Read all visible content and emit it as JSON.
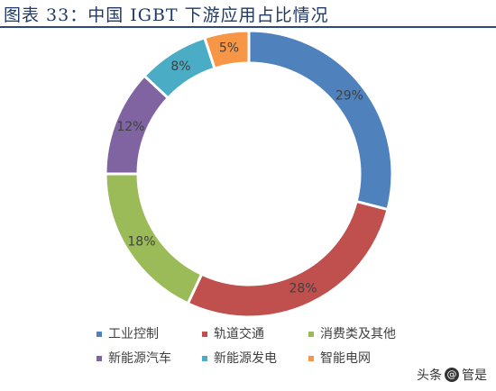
{
  "title": "图表 33：中国 IGBT 下游应用占比情况",
  "watermark": {
    "prefix": "头条",
    "at": "@",
    "name": "管是"
  },
  "chart_data": {
    "type": "pie",
    "donut": true,
    "title": "图表 33：中国 IGBT 下游应用占比情况",
    "slices": [
      {
        "name": "工业控制",
        "value": 29,
        "label": "29%",
        "color": "#4f81bd"
      },
      {
        "name": "轨道交通",
        "value": 28,
        "label": "28%",
        "color": "#c0504d"
      },
      {
        "name": "消费类及其他",
        "value": 18,
        "label": "18%",
        "color": "#9bbb59"
      },
      {
        "name": "新能源汽车",
        "value": 12,
        "label": "12%",
        "color": "#8064a2"
      },
      {
        "name": "新能源发电",
        "value": 8,
        "label": "8%",
        "color": "#4bacc6"
      },
      {
        "name": "智能电网",
        "value": 5,
        "label": "5%",
        "color": "#f79646"
      }
    ],
    "legend_position": "bottom"
  }
}
